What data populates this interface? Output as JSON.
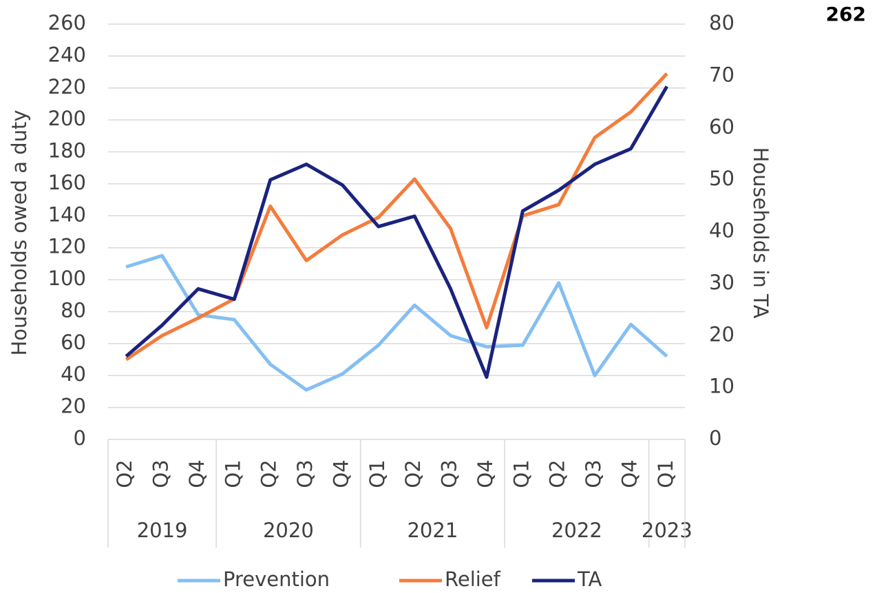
{
  "page_number": "262",
  "chart_data": {
    "type": "line",
    "y_label": "Households owed a duty",
    "y2_label": "Households in TA",
    "categories": [
      "Q2",
      "Q3",
      "Q4",
      "Q1",
      "Q2",
      "Q3",
      "Q4",
      "Q1",
      "Q2",
      "Q3",
      "Q4",
      "Q1",
      "Q2",
      "Q3",
      "Q4",
      "Q1"
    ],
    "groups": [
      {
        "label": "2019",
        "count": 3
      },
      {
        "label": "2020",
        "count": 4
      },
      {
        "label": "2021",
        "count": 4
      },
      {
        "label": "2022",
        "count": 4
      },
      {
        "label": "2023",
        "count": 1
      }
    ],
    "ylim": [
      0,
      260
    ],
    "yticks": [
      0,
      20,
      40,
      60,
      80,
      100,
      120,
      140,
      160,
      180,
      200,
      220,
      240,
      260
    ],
    "y2lim": [
      0,
      80
    ],
    "y2ticks": [
      0,
      10,
      20,
      30,
      40,
      50,
      60,
      70,
      80
    ],
    "grid": true,
    "legend": "bottom",
    "series": [
      {
        "name": "Prevention",
        "color": "#85bff2",
        "values": [
          108,
          115,
          78,
          75,
          47,
          31,
          41,
          59,
          84,
          65,
          58,
          59,
          98,
          40,
          72,
          52
        ]
      },
      {
        "name": "Relief",
        "color": "#f47c3c",
        "values": [
          50,
          65,
          76,
          88,
          146,
          112,
          128,
          139,
          163,
          132,
          70,
          140,
          147,
          189,
          205,
          229
        ]
      },
      {
        "name": "TA",
        "color": "#1a237e",
        "axis": "y2",
        "values": [
          16,
          22,
          29,
          27,
          50,
          53,
          49,
          41,
          43,
          29,
          12,
          44,
          48,
          53,
          56,
          68
        ]
      }
    ]
  }
}
